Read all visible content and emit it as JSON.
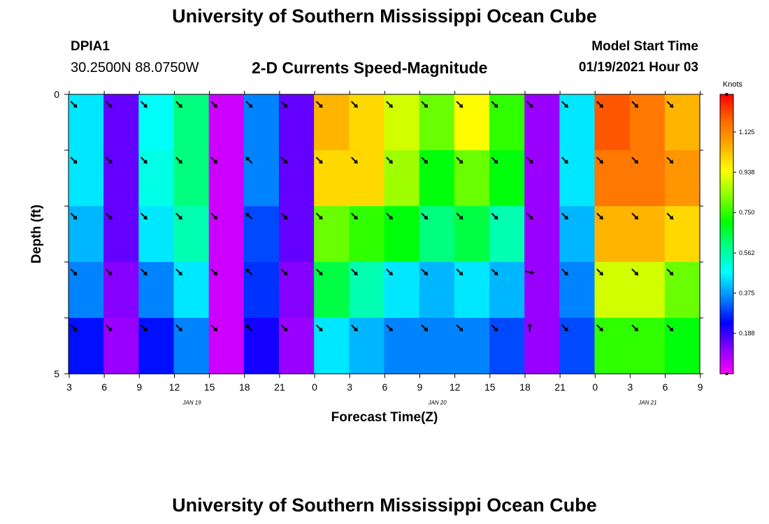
{
  "header": {
    "title": "University of Southern Mississippi Ocean Cube",
    "station_id": "DPIA1",
    "station_coords": "30.2500N 88.0750W",
    "plot_title": "2-D Currents Speed-Magnitude",
    "model_start_label": "Model Start Time",
    "model_start_value": "01/19/2021 Hour 03"
  },
  "footer": {
    "title": "University of Southern Mississippi Ocean Cube"
  },
  "chart_data": {
    "type": "heatmap",
    "title": "2-D Currents Speed-Magnitude",
    "xlabel": "Forecast Time(Z)",
    "ylabel": "Depth (ft)",
    "y_tick_labels": [
      "0",
      "5"
    ],
    "ylim": [
      0,
      5
    ],
    "x_tick_labels": [
      "3",
      "6",
      "9",
      "12",
      "15",
      "18",
      "21",
      "0",
      "3",
      "6",
      "9",
      "12",
      "15",
      "18",
      "21",
      "0",
      "3",
      "6",
      "9"
    ],
    "date_labels": [
      {
        "text": "JAN 19",
        "at_tick": 3.5
      },
      {
        "text": "JAN 20",
        "at_tick": 10.5
      },
      {
        "text": "JAN 21",
        "at_tick": 16.5
      }
    ],
    "colorbar": {
      "units": "Knots",
      "ticks": [
        "0.188",
        "0.375",
        "0.562",
        "0.750",
        "0.938",
        "1.125"
      ],
      "tick_values": [
        0.188,
        0.375,
        0.562,
        0.75,
        0.938,
        1.125
      ],
      "range": [
        0,
        1.3
      ],
      "colors": [
        "#ff00ff",
        "#8800ff",
        "#0000ff",
        "#0088ff",
        "#00ffff",
        "#00ff88",
        "#00ff00",
        "#88ff00",
        "#ffff00",
        "#ffaa00",
        "#ff6600",
        "#ff0000"
      ]
    },
    "depth_rows": 5,
    "time_columns": 18,
    "speed_knots": [
      [
        0.45,
        0.15,
        0.48,
        0.6,
        0.05,
        0.35,
        0.15,
        1.05,
        1.0,
        0.9,
        0.8,
        0.95,
        0.75,
        0.1,
        0.45,
        1.2,
        1.15,
        1.05
      ],
      [
        0.45,
        0.15,
        0.5,
        0.6,
        0.05,
        0.35,
        0.15,
        1.0,
        1.0,
        0.85,
        0.7,
        0.8,
        0.7,
        0.1,
        0.45,
        1.15,
        1.15,
        1.1
      ],
      [
        0.4,
        0.15,
        0.45,
        0.55,
        0.05,
        0.3,
        0.15,
        0.8,
        0.75,
        0.7,
        0.6,
        0.65,
        0.55,
        0.1,
        0.4,
        1.05,
        1.05,
        1.0
      ],
      [
        0.35,
        0.12,
        0.35,
        0.45,
        0.05,
        0.28,
        0.12,
        0.65,
        0.55,
        0.45,
        0.4,
        0.45,
        0.4,
        0.1,
        0.35,
        0.9,
        0.9,
        0.8
      ],
      [
        0.25,
        0.1,
        0.25,
        0.35,
        0.05,
        0.22,
        0.1,
        0.45,
        0.4,
        0.35,
        0.35,
        0.35,
        0.3,
        0.1,
        0.3,
        0.75,
        0.75,
        0.7
      ]
    ],
    "direction_deg": [
      [
        135,
        135,
        135,
        135,
        135,
        135,
        135,
        135,
        135,
        135,
        135,
        135,
        135,
        135,
        135,
        135,
        135,
        135
      ],
      [
        135,
        135,
        135,
        135,
        135,
        315,
        135,
        135,
        135,
        135,
        135,
        135,
        135,
        135,
        135,
        135,
        135,
        135
      ],
      [
        135,
        135,
        135,
        135,
        135,
        315,
        135,
        135,
        135,
        135,
        135,
        135,
        135,
        135,
        135,
        135,
        135,
        135
      ],
      [
        135,
        135,
        135,
        135,
        135,
        315,
        135,
        135,
        135,
        135,
        135,
        135,
        135,
        100,
        135,
        135,
        135,
        135
      ],
      [
        135,
        135,
        135,
        135,
        135,
        315,
        135,
        135,
        135,
        135,
        135,
        135,
        135,
        0,
        135,
        135,
        135,
        135
      ]
    ]
  }
}
